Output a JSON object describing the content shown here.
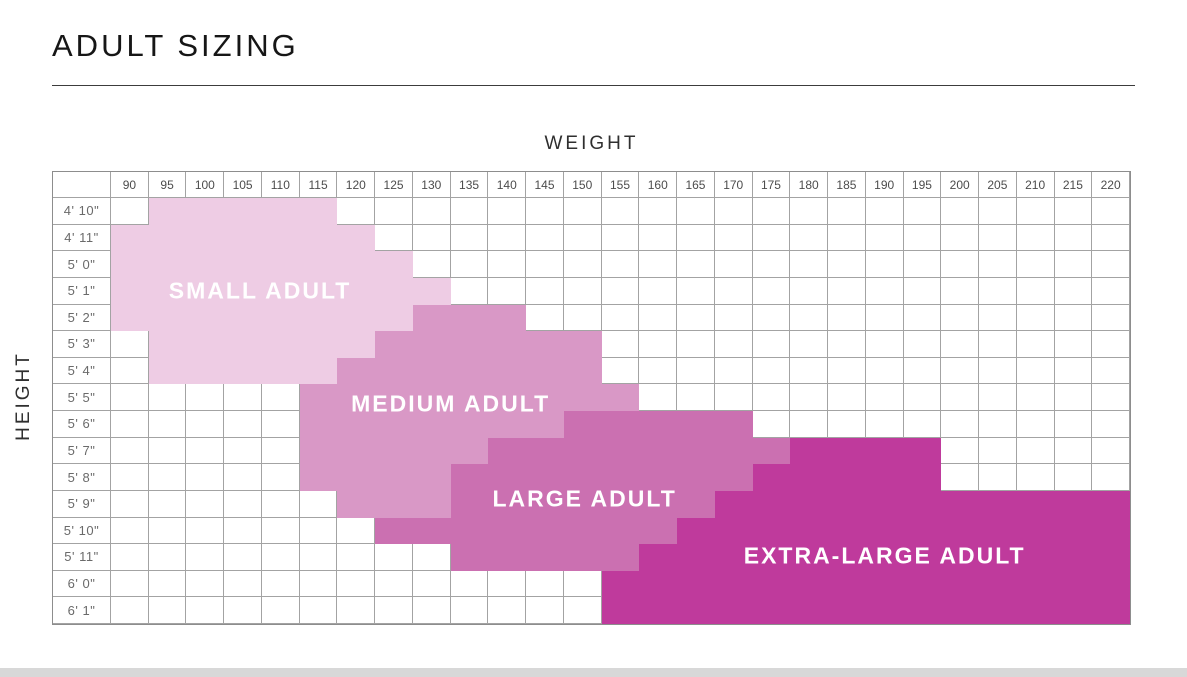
{
  "title": "ADULT SIZING",
  "axes": {
    "x_label": "WEIGHT",
    "y_label": "HEIGHT"
  },
  "grid_colors": {
    "line": "#a3a3a3",
    "outer_border": "#8d8d8d",
    "label_text": "#ffffff"
  },
  "chart_data": {
    "type": "heatmap",
    "x_axis_title": "WEIGHT",
    "y_axis_title": "HEIGHT",
    "x_categories": [
      90,
      95,
      100,
      105,
      110,
      115,
      120,
      125,
      130,
      135,
      140,
      145,
      150,
      155,
      160,
      165,
      170,
      175,
      180,
      185,
      190,
      195,
      200,
      205,
      210,
      215,
      220
    ],
    "y_categories": [
      "4' 10\"",
      "4' 11\"",
      "5' 0\"",
      "5' 1\"",
      "5' 2\"",
      "5' 3\"",
      "5' 4\"",
      "5' 5\"",
      "5' 6\"",
      "5' 7\"",
      "5' 8\"",
      "5' 9\"",
      "5' 10\"",
      "5' 11\"",
      "6' 0\"",
      "6' 1\""
    ],
    "legend_position": "labels-inside-regions",
    "grid_on": true,
    "regions": [
      {
        "name": "SMALL ADULT",
        "color": "#eecce4",
        "rows": {
          "4' 10\"": [
            95,
            115
          ],
          "4' 11\"": [
            90,
            120
          ],
          "5' 0\"": [
            90,
            125
          ],
          "5' 1\"": [
            90,
            130
          ],
          "5' 2\"": [
            90,
            125
          ],
          "5' 3\"": [
            95,
            120
          ],
          "5' 4\"": [
            95,
            115
          ]
        },
        "label_pos": {
          "col_frac": 3.95,
          "row_frac": 3.5
        }
      },
      {
        "name": "MEDIUM ADULT",
        "color": "#d998c6",
        "rows": {
          "5' 2\"": [
            130,
            140
          ],
          "5' 3\"": [
            125,
            150
          ],
          "5' 4\"": [
            120,
            150
          ],
          "5' 5\"": [
            115,
            155
          ],
          "5' 6\"": [
            115,
            145
          ],
          "5' 7\"": [
            115,
            135
          ],
          "5' 8\"": [
            115,
            130
          ],
          "5' 9\"": [
            120,
            130
          ]
        },
        "label_pos": {
          "col_frac": 9.0,
          "row_frac": 7.75
        }
      },
      {
        "name": "LARGE ADULT",
        "color": "#cb70b1",
        "rows": {
          "5' 6\"": [
            150,
            170
          ],
          "5' 7\"": [
            140,
            175
          ],
          "5' 8\"": [
            135,
            170
          ],
          "5' 9\"": [
            135,
            165
          ],
          "5' 10\"": [
            125,
            160
          ],
          "5' 11\"": [
            135,
            155
          ]
        },
        "label_pos": {
          "col_frac": 12.55,
          "row_frac": 11.3
        }
      },
      {
        "name": "EXTRA-LARGE ADULT",
        "color": "#bf3a9c",
        "rows": {
          "5' 7\"": [
            180,
            195
          ],
          "5' 8\"": [
            175,
            195
          ],
          "5' 9\"": [
            170,
            220
          ],
          "5' 10\"": [
            165,
            220
          ],
          "5' 11\"": [
            160,
            220
          ],
          "6' 0\"": [
            155,
            220
          ],
          "6' 1\"": [
            155,
            220
          ]
        },
        "label_pos": {
          "col_frac": 20.5,
          "row_frac": 13.45
        }
      }
    ]
  }
}
